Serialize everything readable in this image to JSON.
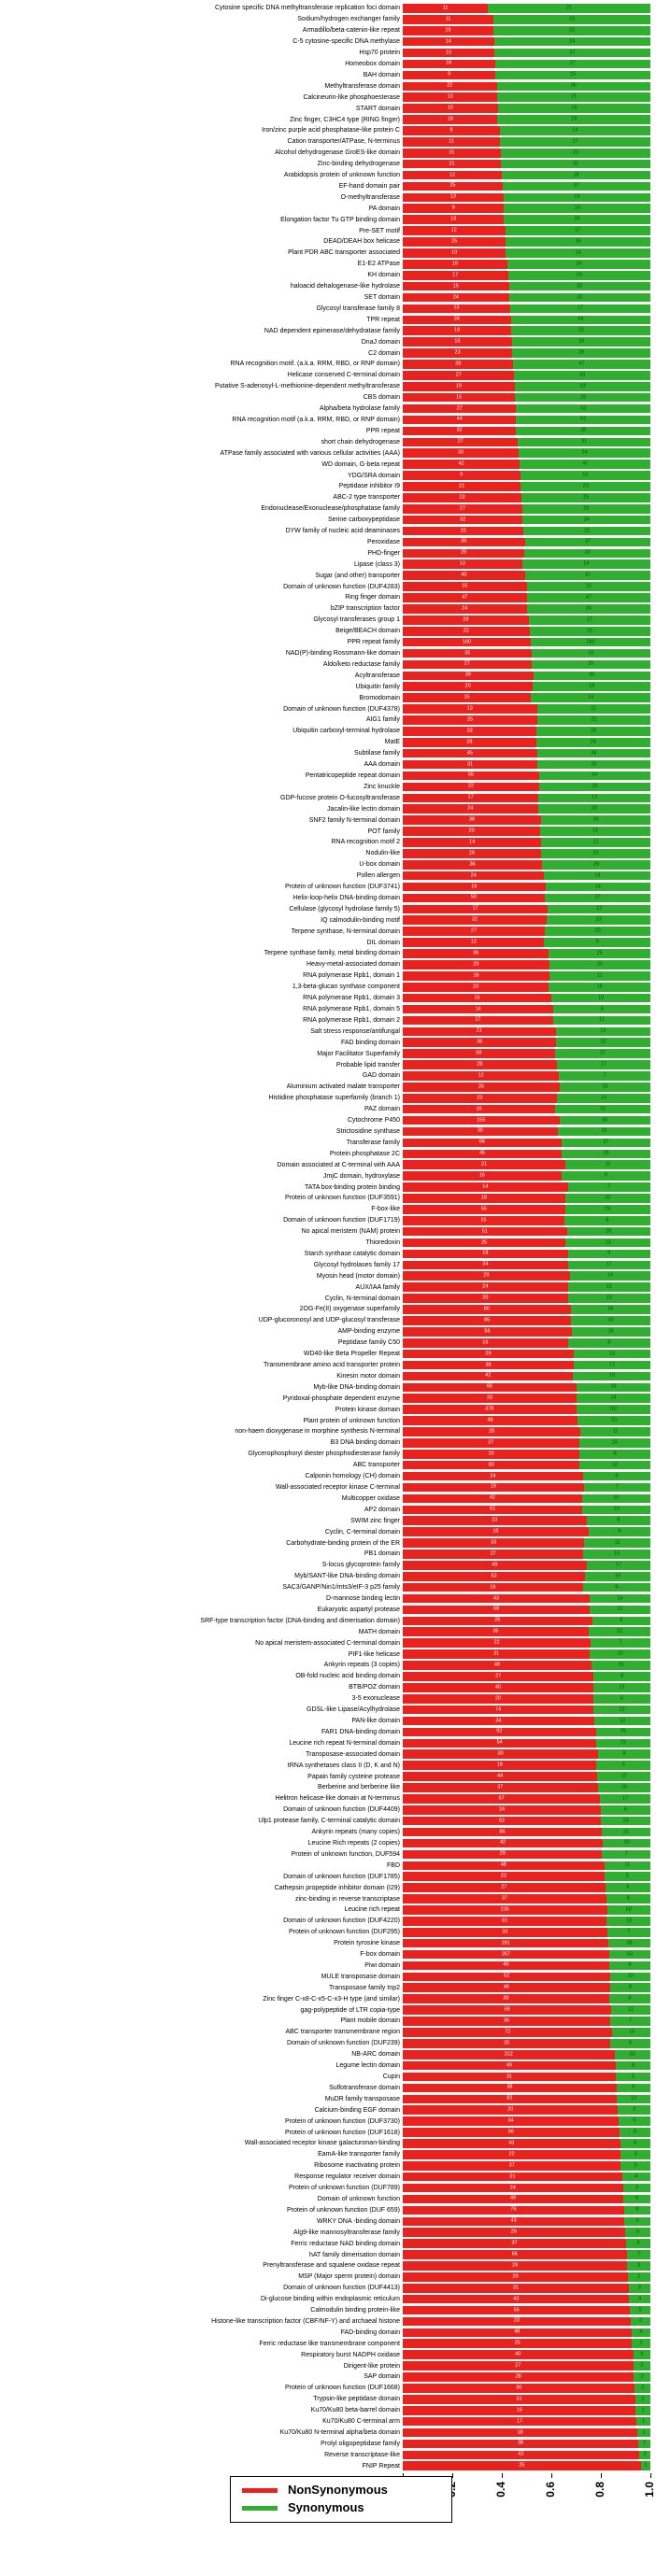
{
  "chart_data": {
    "type": "bar",
    "orientation": "horizontal",
    "stacked": true,
    "xlim": [
      0,
      1
    ],
    "x_ticks": [
      "0.0",
      "0.2",
      "0.4",
      "0.6",
      "0.8",
      "1.0"
    ],
    "grid": false,
    "legend_position": "bottom",
    "series_names": [
      "NonSynonymous",
      "Synonymous"
    ],
    "colors": {
      "nonsynonymous": "#e8231f",
      "synonymous": "#2fae2f"
    },
    "legend": [
      {
        "label": "NonSynonymous",
        "color": "#e8231f"
      },
      {
        "label": "Synonymous",
        "color": "#2fae2f"
      }
    ],
    "rows": [
      [
        "Cytosine specific DNA methyltransferase replication foci domain",
        11,
        21
      ],
      [
        "Sodium/hydrogen exchanger family",
        11,
        19
      ],
      [
        "Armadillo/beta-catenin-like repeat",
        19,
        33
      ],
      [
        "C-5 cytosine-specific DNA methylase",
        14,
        24
      ],
      [
        "Hsp70 protein",
        10,
        17
      ],
      [
        "Homeobox domain",
        16,
        27
      ],
      [
        "BAH domain",
        9,
        15
      ],
      [
        "Methyltransferase domain",
        22,
        36
      ],
      [
        "Calcineurin-like phosphoesterase",
        13,
        21
      ],
      [
        "START domain",
        10,
        16
      ],
      [
        "Zinc finger, C3HC4 type (RING finger)",
        18,
        29
      ],
      [
        "Iron/zinc purple acid phosphatase-like protein C",
        9,
        14
      ],
      [
        "Cation transporter/ATPase, N-terminus",
        11,
        17
      ],
      [
        "Alcohol dehydrogenase GroES-like domain",
        15,
        23
      ],
      [
        "Zinc-binding dehydrogenase",
        21,
        32
      ],
      [
        "Arabidopsis protein of unknown function",
        12,
        18
      ],
      [
        "EF-hand domain pair",
        25,
        37
      ],
      [
        "O-methyltransferase",
        13,
        19
      ],
      [
        "PA domain",
        9,
        13
      ],
      [
        "Elongation factor Tu GTP binding domain",
        18,
        26
      ],
      [
        "Pre-SET motif",
        12,
        17
      ],
      [
        "DEAD/DEAH box helicase",
        25,
        35
      ],
      [
        "Plant PDR ABC transporter associated",
        10,
        14
      ],
      [
        "E1-E2 ATPase",
        19,
        26
      ],
      [
        "KH domain",
        17,
        23
      ],
      [
        "haloacid dehalogenase-like hydrolase",
        15,
        20
      ],
      [
        "SET domain",
        24,
        32
      ],
      [
        "Glycosyl transferase family 8",
        13,
        17
      ],
      [
        "TPR repeat",
        34,
        44
      ],
      [
        "NAD dependent epimerase/dehydratase family",
        18,
        23
      ],
      [
        "DnaJ domain",
        15,
        19
      ],
      [
        "C2 domain",
        23,
        29
      ],
      [
        "RNA recognition motif. (a.k.a. RRM, RBD, or RNP domain)",
        38,
        47
      ],
      [
        "Helicase conserved C-terminal domain",
        27,
        33
      ],
      [
        "Putative S-adenosyl-L-methionine-dependent methyltransferase",
        19,
        23
      ],
      [
        "CBS domain",
        15,
        18
      ],
      [
        "Alpha/beta hydrolase family",
        27,
        32
      ],
      [
        "RNA recognition motif (a.k.a. RRM, RBD, or RNP domain)",
        44,
        52
      ],
      [
        "PPR repeat",
        32,
        38
      ],
      [
        "short chain dehydrogenase",
        27,
        31
      ],
      [
        "ATPase family associated with various cellular activities (AAA)",
        30,
        34
      ],
      [
        "WD domain, G-beta repeat",
        42,
        47
      ],
      [
        "YDG/SRA domain",
        9,
        10
      ],
      [
        "Peptidase inhibitor I9",
        21,
        23
      ],
      [
        "ABC-2 type transporter",
        23,
        25
      ],
      [
        "Endonuclease/Exonuclease/phosphatase family",
        27,
        29
      ],
      [
        "Serine carboxypeptidase",
        32,
        34
      ],
      [
        "DYW family of nucleic acid deaminases",
        20,
        21
      ],
      [
        "Peroxidase",
        36,
        37
      ],
      [
        "PHD-finger",
        29,
        30
      ],
      [
        "Lipase (class 3)",
        13,
        14
      ],
      [
        "Sugar (and other) transporter",
        40,
        41
      ],
      [
        "Domain of unknown function (DUF4283)",
        15,
        15
      ],
      [
        "Ring finger domain",
        47,
        47
      ],
      [
        "bZIP transcription factor",
        24,
        24
      ],
      [
        "Glycosyl transferases group 1",
        28,
        27
      ],
      [
        "Beige/BEACH domain",
        22,
        21
      ],
      [
        "PPR repeat family",
        160,
        150
      ],
      [
        "NAD(P)-binding Rossmann-like domain",
        35,
        32
      ],
      [
        "Aldo/keto reductase family",
        27,
        25
      ],
      [
        "Acyltransferase",
        39,
        35
      ],
      [
        "Ubiquitin family",
        20,
        18
      ],
      [
        "Bromodomain",
        15,
        14
      ],
      [
        "Domain of unknown function (DUF4378)",
        13,
        11
      ],
      [
        "AIG1 family",
        25,
        21
      ],
      [
        "Ubiquitin carboxyl-terminal hydrolase",
        33,
        28
      ],
      [
        "MatE",
        28,
        24
      ],
      [
        "Subtilase family",
        45,
        38
      ],
      [
        "AAA domain",
        31,
        26
      ],
      [
        "Pentatricopeptide repeat domain",
        66,
        54
      ],
      [
        "Zinc knuckle",
        22,
        18
      ],
      [
        "GDP-fucose protein O-fucosyltransferase",
        17,
        14
      ],
      [
        "Jacalin-like lectin domain",
        24,
        20
      ],
      [
        "SNF2 family N-terminal domain",
        38,
        30
      ],
      [
        "POT family",
        20,
        16
      ],
      [
        "RNA recognition motif 2",
        14,
        11
      ],
      [
        "Nodulin-like",
        29,
        23
      ],
      [
        "U-box domain",
        36,
        28
      ],
      [
        "Pollen allergen",
        24,
        18
      ],
      [
        "Protein of unknown function (DUF3741)",
        19,
        14
      ],
      [
        "Helix-loop-helix DNA-binding domain",
        50,
        37
      ],
      [
        "Cellulase (glycosyl hydrolase family 5)",
        17,
        12
      ],
      [
        "IQ calmodulin-binding motif",
        32,
        23
      ],
      [
        "Terpene synthase, N-terminal domain",
        27,
        20
      ],
      [
        "DIL domain",
        12,
        9
      ],
      [
        "Terpene synthase family, metal binding domain",
        36,
        25
      ],
      [
        "Heavy-metal-associated domain",
        29,
        20
      ],
      [
        "RNA polymerase Rpb1, domain 1",
        16,
        11
      ],
      [
        "1,3-beta-glucan synthase component",
        23,
        16
      ],
      [
        "RNA polymerase Rpb1, domain 3",
        15,
        10
      ],
      [
        "RNA polymerase Rpb1, domain 5",
        14,
        9
      ],
      [
        "RNA polymerase Rpb1, domain 2",
        17,
        11
      ],
      [
        "Salt stress response/antifungal",
        21,
        13
      ],
      [
        "FAD binding domain",
        36,
        22
      ],
      [
        "Major Facilitator Superfamily",
        59,
        37
      ],
      [
        "Probable lipid transfer",
        28,
        17
      ],
      [
        "GAD domain",
        12,
        7
      ],
      [
        "Aluminium activated malate transporter",
        26,
        15
      ],
      [
        "Histidine phosphatase superfamily (branch 1)",
        23,
        14
      ],
      [
        "PAZ domain",
        16,
        10
      ],
      [
        "Cytochrome P450",
        155,
        90
      ],
      [
        "Strictosidine synthase",
        30,
        18
      ],
      [
        "Transferase family",
        66,
        37
      ],
      [
        "Protein phosphatase 2C",
        45,
        25
      ],
      [
        "Domain associated at C-terminal with AAA",
        21,
        11
      ],
      [
        "JmjC domain, hydroxylase",
        16,
        9
      ],
      [
        "TATA box-binding protein binding",
        14,
        7
      ],
      [
        "Protein of unknown function (DUF3591)",
        19,
        10
      ],
      [
        "F-box-like",
        55,
        29
      ],
      [
        "Domain of unknown function (DUF1719)",
        15,
        8
      ],
      [
        "No apical meristem (NAM) protein",
        51,
        26
      ],
      [
        "Thioredoxin",
        25,
        13
      ],
      [
        "Starch synthase catalytic domain",
        18,
        9
      ],
      [
        "Glycosyl hydrolases family 17",
        34,
        17
      ],
      [
        "Myosin head (motor domain)",
        29,
        14
      ],
      [
        "AUX/IAA family",
        24,
        12
      ],
      [
        "Cyclin, N-terminal domain",
        20,
        10
      ],
      [
        "2OG-Fe(II) oxygenase superfamily",
        80,
        38
      ],
      [
        "UDP-glucoronosyl and UDP-glucosyl transferase",
        85,
        40
      ],
      [
        "AMP-binding enzyme",
        56,
        26
      ],
      [
        "Peptidase family C50",
        16,
        8
      ],
      [
        "WD40-like Beta Propeller Repeat",
        29,
        13
      ],
      [
        "Transmembrane amino acid transporter protein",
        38,
        17
      ],
      [
        "Kinesin motor domain",
        42,
        19
      ],
      [
        "Myb-like DNA-binding domain",
        66,
        28
      ],
      [
        "Pyridoxal-phosphate dependent enzyme",
        33,
        14
      ],
      [
        "Protein kinase domain",
        378,
        162
      ],
      [
        "Plant protein of unknown function",
        48,
        20
      ],
      [
        "non-haem dioxygenase in morphine synthesis N-terminal",
        28,
        11
      ],
      [
        "B3 DNA binding domain",
        37,
        15
      ],
      [
        "Glycerophosphoryl diester phosphodiesterase family",
        20,
        8
      ],
      [
        "ABC transporter",
        80,
        32
      ],
      [
        "Calponin homology (CH) domain",
        24,
        9
      ],
      [
        "Wall-associated receptor kinase C-terminal",
        19,
        7
      ],
      [
        "Multicopper oxidase",
        42,
        16
      ],
      [
        "AP2 domain",
        61,
        23
      ],
      [
        "SWIM zinc finger",
        23,
        8
      ],
      [
        "Cyclin, C-terminal domain",
        18,
        6
      ],
      [
        "Carbohydrate-binding protein of the ER",
        33,
        12
      ],
      [
        "PB1 domain",
        27,
        10
      ],
      [
        "S-locus glycoprotein family",
        49,
        17
      ],
      [
        "Myb/SANT-like DNA-binding domain",
        53,
        19
      ],
      [
        "SAC3/GANP/Nin1/mts3/eIF-3 p25 family",
        16,
        6
      ],
      [
        "D-mannose binding lectin",
        43,
        14
      ],
      [
        "Eukaryotic aspartyl protease",
        68,
        22
      ],
      [
        "SRF-type transcription factor (DNA-binding and dimerisation domain)",
        26,
        8
      ],
      [
        "MATH domain",
        36,
        12
      ],
      [
        "No apical meristem-associated C-terminal domain",
        22,
        7
      ],
      [
        "PIF1-like helicase",
        31,
        10
      ],
      [
        "Ankyrin repeats (3 copies)",
        48,
        15
      ],
      [
        "OB-fold nucleic acid binding domain",
        27,
        8
      ],
      [
        "BTB/POZ domain",
        40,
        12
      ],
      [
        "3-5 exonuclease",
        20,
        6
      ],
      [
        "GDSL-like Lipase/Acylhydrolase",
        74,
        22
      ],
      [
        "PAN-like domain",
        34,
        10
      ],
      [
        "FAR1 DNA-binding domain",
        92,
        26
      ],
      [
        "Leucine rich repeat N-terminal domain",
        54,
        15
      ],
      [
        "Transposase-associated domain",
        30,
        8
      ],
      [
        "tRNA synthetases class II (D, K and N)",
        18,
        5
      ],
      [
        "Papain family cysteine protease",
        44,
        12
      ],
      [
        "Berberine and berberine like",
        37,
        10
      ],
      [
        "Helitron helicase-like domain at N-terminus",
        67,
        17
      ],
      [
        "Domain of unknown function (DUF4409)",
        24,
        6
      ],
      [
        "Ulp1 protease family, C-terminal catalytic domain",
        52,
        13
      ],
      [
        "Ankyrin repeats (many copies)",
        86,
        21
      ],
      [
        "Leucine Rich repeats (2 copies)",
        42,
        10
      ],
      [
        "Protein of unknown function, DUF594",
        29,
        7
      ],
      [
        "FBD",
        48,
        11
      ],
      [
        "Domain of unknown function (DUF1785)",
        22,
        5
      ],
      [
        "Cathepsin propeptide inhibitor domain (I29)",
        27,
        6
      ],
      [
        "zinc-binding in reverse transcriptase",
        37,
        8
      ],
      [
        "Leucine rich repeat",
        235,
        50
      ],
      [
        "Domain of unknown function (DUF4220)",
        61,
        13
      ],
      [
        "Protein of unknown function (DUF295)",
        33,
        7
      ],
      [
        "Protein tyrosine kinase",
        191,
        39
      ],
      [
        "F-box domain",
        267,
        53
      ],
      [
        "Piwi domain",
        40,
        8
      ],
      [
        "MULE transposase domain",
        52,
        10
      ],
      [
        "Transposase family tnp2",
        46,
        9
      ],
      [
        "Zinc finger C-x8-C-x5-C-x3-H type (and similar)",
        30,
        6
      ],
      [
        "gag-polypeptide of LTR copia-type",
        59,
        11
      ],
      [
        "Plant mobile domain",
        36,
        7
      ],
      [
        "ABC transporter transmembrane region",
        72,
        13
      ],
      [
        "Domain of unknown function (DUF239)",
        26,
        5
      ],
      [
        "NB-ARC domain",
        312,
        53
      ],
      [
        "Legume lectin domain",
        49,
        8
      ],
      [
        "Cupin",
        31,
        5
      ],
      [
        "Sulfotransferase domain",
        38,
        6
      ],
      [
        "MuDR family transposase",
        82,
        13
      ],
      [
        "Calcium-binding EGF domain",
        20,
        3
      ],
      [
        "Protein of unknown function (DUF3730)",
        34,
        5
      ],
      [
        "Protein of unknown function (DUF1618)",
        56,
        8
      ],
      [
        "Wall-associated receptor kinase galacturonan-binding",
        43,
        6
      ],
      [
        "EamA-like transporter family",
        22,
        3
      ],
      [
        "Ribosome inactivating protein",
        37,
        5
      ],
      [
        "Response regulator receiver domain",
        31,
        4
      ],
      [
        "Protein of unknown function (DUF789)",
        24,
        3
      ],
      [
        "Domain of unknown function",
        49,
        6
      ],
      [
        "Protein of unknown function (DUF 659)",
        76,
        9
      ],
      [
        "WRKY DNA -binding domain",
        43,
        5
      ],
      [
        "Alg9-like mannosyltransferase family",
        26,
        3
      ],
      [
        "Ferric reductase NAD binding domain",
        37,
        4
      ],
      [
        "hAT family dimerisation domain",
        66,
        7
      ],
      [
        "Prenyltransferase and squalene oxidase repeat",
        29,
        3
      ],
      [
        "MSP (Major sperm protein) domain",
        20,
        2
      ],
      [
        "Domain of unknown function (DUF4413)",
        31,
        3
      ],
      [
        "Di-glucose binding within endoplasmic reticulum",
        43,
        4
      ],
      [
        "Calmodulin binding protein-like",
        56,
        5
      ],
      [
        "Histone-like transcription factor (CBF/NF-Y) and archaeal histone",
        23,
        2
      ],
      [
        "FAD-binding domain",
        48,
        4
      ],
      [
        "Ferric reductase like transmembrane component",
        25,
        2
      ],
      [
        "Respiratory burst NADPH oxidase",
        40,
        3
      ],
      [
        "Dirigent-like protein",
        27,
        2
      ],
      [
        "SAP domain",
        28,
        2
      ],
      [
        "Protein of unknown function (DUF1668)",
        30,
        2
      ],
      [
        "Trypsin-like peptidase domain",
        31,
        2
      ],
      [
        "Ku70/Ku80 beta-barrel domain",
        16,
        1
      ],
      [
        "Ku70/Ku80 C-terminal arm",
        17,
        1
      ],
      [
        "Ku70/Ku80 N-terminal alpha/beta domain",
        18,
        1
      ],
      [
        "Prolyl oligopeptidase family",
        38,
        2
      ],
      [
        "Reverse transcriptase-like",
        42,
        2
      ],
      [
        "FNIP Repeat",
        25,
        1
      ]
    ]
  }
}
